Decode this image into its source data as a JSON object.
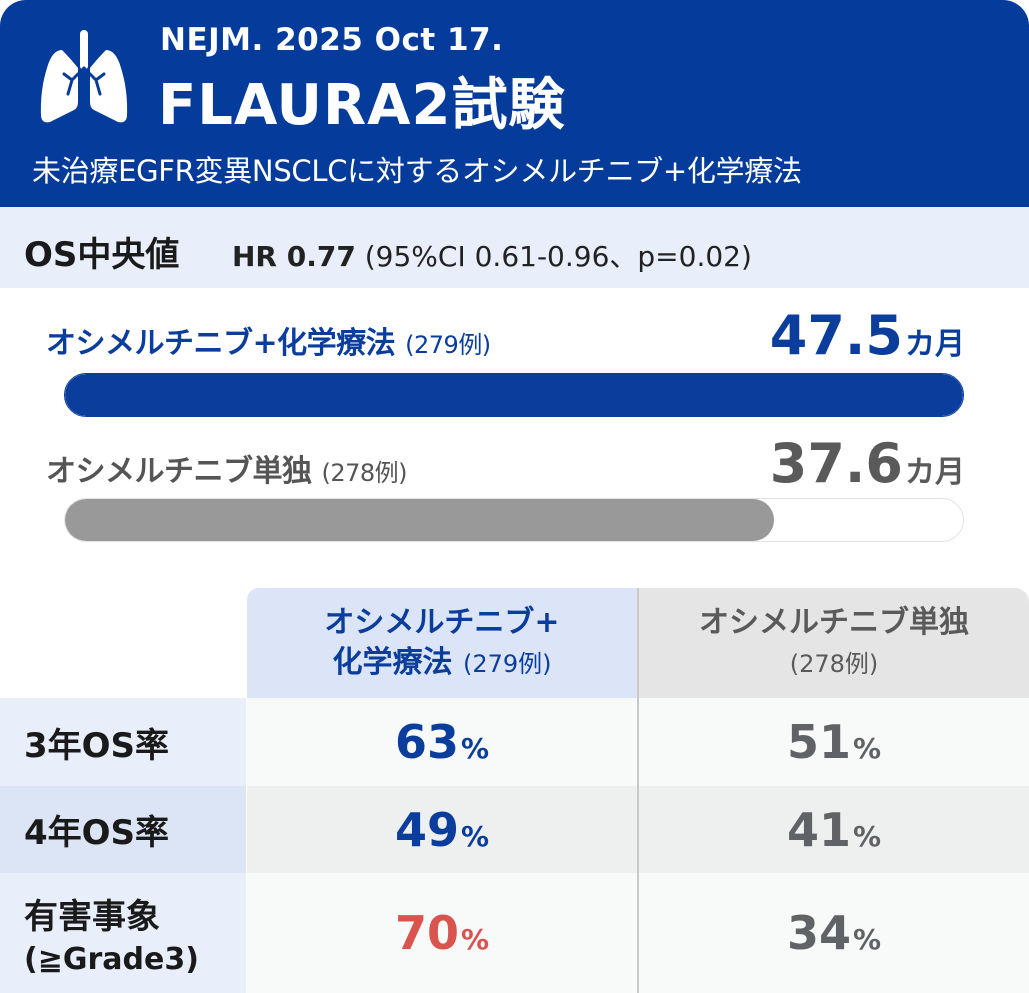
{
  "header": {
    "journal": "NEJM. 2025 Oct 17.",
    "trial_name": "FLAURA2試験",
    "subtitle": "未治療EGFR変異NSCLCに対するオシメルチニブ+化学療法",
    "icon": "lungs-icon",
    "background_color": "#053b9a"
  },
  "os_summary": {
    "label": "OS中央値",
    "hr_label": "HR 0.77",
    "ci_text": "(95%CI 0.61-0.96、p=0.02)"
  },
  "arms": [
    {
      "name": "オシメルチニブ+化学療法",
      "n": "(279例)",
      "median_value": "47.5",
      "median_unit": "カ月",
      "bar_fraction": 1.0,
      "color": "#0b3d9c"
    },
    {
      "name": "オシメルチニブ単独",
      "n": "(278例)",
      "median_value": "37.6",
      "median_unit": "カ月",
      "bar_fraction": 0.79,
      "color": "#999999"
    }
  ],
  "table": {
    "columns": [
      {
        "line1": "オシメルチニブ+",
        "line2": "化学療法",
        "n": "(279例)"
      },
      {
        "line1": "オシメルチニブ単独",
        "line2": "",
        "n": "(278例)"
      }
    ],
    "rows": [
      {
        "label": "3年OS率",
        "sub": "",
        "combo": "63",
        "mono": "51",
        "unit": "%"
      },
      {
        "label": "4年OS率",
        "sub": "",
        "combo": "49",
        "mono": "41",
        "unit": "%"
      },
      {
        "label": "有害事象",
        "sub": "(≧Grade3)",
        "combo": "70",
        "mono": "34",
        "unit": "%"
      }
    ],
    "highlight_color": "#d9534f"
  }
}
